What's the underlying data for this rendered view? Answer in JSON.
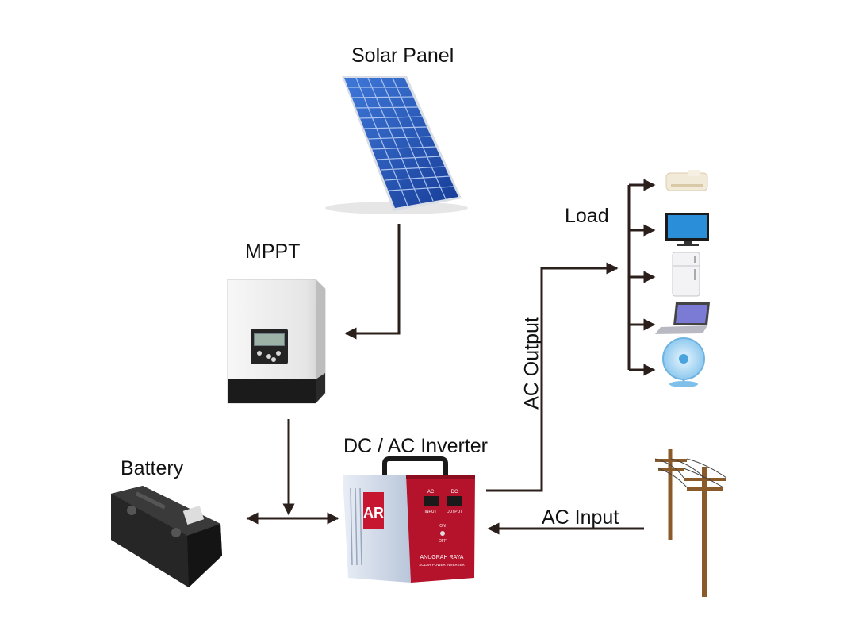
{
  "labels": {
    "solar_panel": "Solar Panel",
    "mppt": "MPPT",
    "load": "Load",
    "battery": "Battery",
    "inverter": "DC / AC Inverter",
    "ac_output": "AC Output",
    "ac_input": "AC Input"
  },
  "inverter_panel": {
    "brand_logo": "AR",
    "ac_label": "AC",
    "dc_label": "DC",
    "input_label": "INPUT",
    "output_label": "OUTPUT",
    "on_label": "ON",
    "off_label": "OFF",
    "brand_name": "ANUGRAH RAYA",
    "brand_sub": "SOLAR POWER INVERTER"
  },
  "colors": {
    "arrow": "#2b1f1c",
    "panel_blue": "#1f4fb5",
    "inverter_red": "#b5122b",
    "pole_brown": "#8a5a2b"
  },
  "icons": [
    "solar-panel-icon",
    "mppt-controller-icon",
    "battery-icon",
    "inverter-icon",
    "air-conditioner-icon",
    "tv-icon",
    "fridge-icon",
    "laptop-icon",
    "fan-icon",
    "power-pole-icon"
  ]
}
